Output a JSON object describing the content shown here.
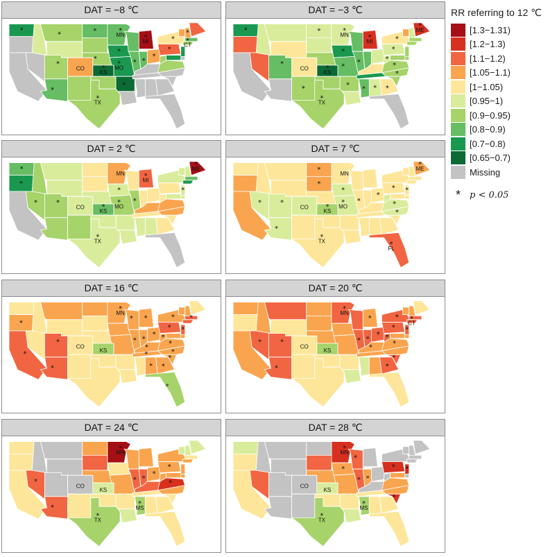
{
  "panels": [
    {
      "title": "DAT = −8 ℃",
      "fill": {
        "WA": 8,
        "OR": -1,
        "CA": -1,
        "NV": -1,
        "ID": 5,
        "MT": 6,
        "WY": 5,
        "UT": 6,
        "CO": 3,
        "AZ": 7,
        "NM": 6,
        "ND": 7,
        "SD": 6,
        "NE": 6,
        "KS": 9,
        "OK": 6,
        "TX": 6,
        "MN": 7,
        "IA": 8,
        "MO": 8,
        "AR": 9,
        "LA": -1,
        "WI": 7,
        "IL": 7,
        "IN": 7,
        "MI": 0,
        "OH": 3,
        "KY": -1,
        "TN": -1,
        "MS": -1,
        "AL": -1,
        "GA": -1,
        "FL": -1,
        "SC": -1,
        "NC": -1,
        "VA": 6,
        "WV": 6,
        "PA": 2,
        "NY": 4,
        "VT": 3,
        "NH": 3,
        "ME": 2,
        "MA": 7,
        "CT": 6,
        "NJ": 8,
        "DE": -1,
        "MD": 8
      },
      "stars": [
        "WA",
        "MT",
        "ND",
        "NE",
        "MN",
        "IA",
        "KS",
        "MO",
        "AR",
        "TX",
        "AZ",
        "UT",
        "IL",
        "IN",
        "MI",
        "NY",
        "NH",
        "CT",
        "OH",
        "PA"
      ],
      "labels": [
        "CO",
        "KS",
        "MO",
        "TX",
        "MN",
        "MI",
        "CT"
      ]
    },
    {
      "title": "DAT = −3 ℃",
      "fill": {
        "WA": 8,
        "OR": 2,
        "CA": -1,
        "NV": 2,
        "ID": 5,
        "MT": 5,
        "WY": 4,
        "UT": 7,
        "CO": 4,
        "AZ": -1,
        "NM": 6,
        "ND": 5,
        "SD": 5,
        "NE": 6,
        "KS": 9,
        "OK": 6,
        "TX": 6,
        "MN": 5,
        "IA": 8,
        "MO": 7,
        "AR": 6,
        "LA": 5,
        "WI": 7,
        "IL": 7,
        "IN": 7,
        "MI": 1,
        "OH": 5,
        "KY": 4,
        "TN": 8,
        "MS": 7,
        "AL": 5,
        "GA": 4,
        "FL": -1,
        "SC": 6,
        "NC": 6,
        "VA": 6,
        "WV": 5,
        "PA": 5,
        "NY": 4,
        "VT": 3,
        "NH": 5,
        "ME": 1,
        "MA": 6,
        "CT": 6,
        "NJ": 6,
        "DE": 6,
        "MD": 6
      },
      "stars": [
        "WA",
        "MN",
        "ND",
        "KS",
        "IA",
        "MO",
        "AR",
        "TX",
        "NM",
        "MS",
        "IL",
        "MI",
        "ME",
        "VA",
        "NC",
        "WV",
        "UT",
        "AL",
        "GA",
        "PA",
        "NY"
      ],
      "labels": [
        "CO",
        "KS",
        "TX",
        "MN",
        "MI",
        "ME"
      ]
    },
    {
      "title": "DAT = 2 ℃",
      "fill": {
        "WA": 7,
        "OR": 8,
        "CA": -1,
        "NV": 6,
        "ID": 6,
        "MT": 5,
        "WY": 5,
        "UT": 6,
        "CO": 5,
        "AZ": 6,
        "NM": 6,
        "ND": 4,
        "SD": 4,
        "NE": 5,
        "KS": 7,
        "OK": 5,
        "TX": 5,
        "MN": 3,
        "IA": 5,
        "MO": 6,
        "AR": 5,
        "LA": 5,
        "WI": 4,
        "IL": 6,
        "IN": 4,
        "MI": 2,
        "OH": 4,
        "KY": 3,
        "TN": 4,
        "MS": 5,
        "AL": 5,
        "GA": 4,
        "FL": -1,
        "SC": 4,
        "NC": 3,
        "VA": 3,
        "WV": 4,
        "PA": 4,
        "NY": 5,
        "VT": 5,
        "NH": 5,
        "ME": 0,
        "MA": 7,
        "CT": 8,
        "NJ": 5,
        "DE": 5,
        "MD": 5
      },
      "stars": [
        "WA",
        "OR",
        "NV",
        "UT",
        "KS",
        "MO",
        "IA",
        "IL",
        "TX",
        "ME",
        "NJ",
        "MI"
      ],
      "labels": [
        "CO",
        "KS",
        "MO",
        "TX",
        "MN",
        "MI",
        "ME"
      ]
    },
    {
      "title": "DAT = 7 ℃",
      "fill": {
        "WA": 4,
        "OR": 3,
        "CA": 3,
        "NV": 5,
        "ID": 4,
        "MT": 4,
        "WY": 4,
        "UT": 5,
        "CO": 5,
        "AZ": 5,
        "NM": 4,
        "ND": 3,
        "SD": 3,
        "NE": 4,
        "KS": 6,
        "OK": 4,
        "TX": 4,
        "MN": 4,
        "IA": 5,
        "MO": 5,
        "AR": 4,
        "LA": 4,
        "WI": 4,
        "IL": 4,
        "IN": 4,
        "MI": 4,
        "OH": 4,
        "KY": 4,
        "TN": 4,
        "MS": 4,
        "AL": 4,
        "GA": 4,
        "FL": 2,
        "SC": 4,
        "NC": 5,
        "VA": 5,
        "WV": 5,
        "PA": 4,
        "NY": 4,
        "VT": 4,
        "NH": 4,
        "ME": 3,
        "MA": 4,
        "CT": 4,
        "NJ": 4,
        "DE": 4,
        "MD": 4
      },
      "stars": [
        "ND",
        "SD",
        "NV",
        "UT",
        "AZ",
        "KS",
        "MO",
        "IA",
        "TX",
        "IL",
        "FL",
        "NC",
        "VA",
        "PA",
        "ME",
        "OH",
        "NJ"
      ],
      "labels": [
        "CO",
        "KS",
        "MO",
        "TX",
        "MN",
        "FL",
        "ME"
      ]
    },
    {
      "title": "DAT = 16 ℃",
      "fill": {
        "WA": 4,
        "OR": 3,
        "CA": 2,
        "NV": 4,
        "ID": 4,
        "MT": 3,
        "WY": 4,
        "UT": 2,
        "CO": 4,
        "AZ": 2,
        "NM": 4,
        "ND": 3,
        "SD": 4,
        "NE": 4,
        "KS": 6,
        "OK": 4,
        "TX": 4,
        "MN": 3,
        "IA": 3,
        "MO": 3,
        "AR": 4,
        "LA": 4,
        "WI": 3,
        "IL": 3,
        "IN": 3,
        "MI": 3,
        "OH": 3,
        "KY": 3,
        "TN": 3,
        "MS": 4,
        "AL": 3,
        "GA": 3,
        "FL": 6,
        "SC": 3,
        "NC": 3,
        "VA": 3,
        "WV": 3,
        "PA": 2,
        "NY": 3,
        "VT": 3,
        "NH": 3,
        "ME": 4,
        "MA": 2,
        "CT": 2,
        "NJ": 2,
        "DE": 3,
        "MD": 3
      },
      "stars": [
        "OR",
        "CA",
        "UT",
        "AZ",
        "MN",
        "WI",
        "MI",
        "IL",
        "IN",
        "OH",
        "KY",
        "TN",
        "AL",
        "GA",
        "SC",
        "NC",
        "VA",
        "PA",
        "NY",
        "MA",
        "NJ",
        "FL",
        "WV"
      ],
      "labels": [
        "CO",
        "KS",
        "MN"
      ]
    },
    {
      "title": "DAT = 20 ℃",
      "fill": {
        "WA": 3,
        "OR": 4,
        "CA": 3,
        "NV": 2,
        "ID": 3,
        "MT": 2,
        "WY": 4,
        "UT": 2,
        "CO": 4,
        "AZ": 2,
        "NM": 4,
        "ND": 3,
        "SD": 3,
        "NE": 3,
        "KS": 6,
        "OK": 4,
        "TX": 4,
        "MN": 2,
        "IA": 3,
        "MO": 3,
        "AR": 4,
        "LA": 5,
        "WI": 2,
        "IL": 2,
        "IN": 2,
        "MI": 3,
        "OH": 2,
        "KY": 3,
        "TN": 3,
        "MS": 5,
        "AL": 3,
        "GA": 2,
        "FL": 4,
        "SC": 2,
        "NC": 3,
        "VA": 3,
        "WV": 2,
        "PA": 2,
        "NY": 2,
        "VT": 3,
        "NH": 3,
        "ME": 4,
        "MA": 2,
        "CT": 2,
        "NJ": 2,
        "DE": 3,
        "MD": 3
      },
      "stars": [
        "MN",
        "NV",
        "UT",
        "AZ",
        "IL",
        "IN",
        "OH",
        "KY",
        "GA",
        "SC",
        "VA",
        "PA",
        "NY",
        "NJ",
        "CT",
        "WV",
        "MI"
      ],
      "labels": [
        "CO",
        "KS",
        "MN",
        "CT"
      ]
    },
    {
      "title": "DAT = 24 ℃",
      "fill": {
        "WA": 4,
        "OR": 4,
        "CA": 4,
        "NV": 2,
        "ID": -1,
        "MT": -1,
        "WY": -1,
        "UT": -1,
        "CO": -1,
        "AZ": 2,
        "NM": 4,
        "ND": 3,
        "SD": 2,
        "NE": 3,
        "KS": 5,
        "OK": 4,
        "TX": 6,
        "MN": 0,
        "IA": 4,
        "MO": 3,
        "AR": 4,
        "LA": 5,
        "WI": 3,
        "IL": 2,
        "IN": 2,
        "MI": 3,
        "OH": 3,
        "KY": 2,
        "TN": 4,
        "MS": 6,
        "AL": 4,
        "GA": 4,
        "FL": 4,
        "SC": 4,
        "NC": 3,
        "VA": 1,
        "WV": 3,
        "PA": 3,
        "NY": 3,
        "VT": 5,
        "NH": 5,
        "ME": 5,
        "MA": 4,
        "CT": 3,
        "NJ": 3,
        "DE": 3,
        "MD": 3
      },
      "stars": [
        "MN",
        "NV",
        "AZ",
        "IL",
        "IN",
        "VA",
        "TX",
        "MS",
        "PA",
        "OH"
      ],
      "labels": [
        "CO",
        "KS",
        "MN",
        "TX",
        "MS"
      ]
    },
    {
      "title": "DAT = 28 ℃",
      "fill": {
        "WA": 5,
        "OR": 4,
        "CA": 4,
        "NV": 2,
        "ID": -1,
        "MT": -1,
        "WY": -1,
        "UT": -1,
        "CO": -1,
        "AZ": -1,
        "NM": -1,
        "ND": -1,
        "SD": 2,
        "NE": 3,
        "KS": 5,
        "OK": 4,
        "TX": 6,
        "MN": 1,
        "IA": 3,
        "MO": 3,
        "AR": 4,
        "LA": 5,
        "WI": 2,
        "IL": 2,
        "IN": 3,
        "MI": -1,
        "OH": -1,
        "KY": -1,
        "TN": 4,
        "MS": 6,
        "AL": 4,
        "GA": 4,
        "FL": 4,
        "SC": 1,
        "NC": 3,
        "VA": 3,
        "WV": -1,
        "PA": 1,
        "NY": -1,
        "VT": -1,
        "NH": -1,
        "ME": -1,
        "MA": -1,
        "CT": -1,
        "NJ": 1,
        "DE": -1,
        "MD": 3
      },
      "stars": [
        "MN",
        "WI",
        "IA",
        "IL",
        "TX",
        "MS",
        "SC",
        "PA",
        "NJ",
        "IN"
      ],
      "labels": [
        "CO",
        "KS",
        "MN",
        "TX",
        "MS"
      ]
    }
  ],
  "legend": {
    "title": "RR referring to 12 ℃",
    "items": [
      {
        "label": "[1.3−1.31)",
        "color": "#a50f15"
      },
      {
        "label": "[1.2−1.3)",
        "color": "#d7301f"
      },
      {
        "label": "[1.1−1.2)",
        "color": "#f16542"
      },
      {
        "label": "[1.05−1.1)",
        "color": "#f9a54f"
      },
      {
        "label": "[1−1.05)",
        "color": "#fde699"
      },
      {
        "label": "[0.95−1)",
        "color": "#d9ec9b"
      },
      {
        "label": "[0.9−0.95)",
        "color": "#a6d36a"
      },
      {
        "label": "[0.8−0.9)",
        "color": "#66bd63"
      },
      {
        "label": "[0.7−0.8)",
        "color": "#1a9850"
      },
      {
        "label": "[0.65−0.7)",
        "color": "#0c6a35"
      },
      {
        "label": "Missing",
        "color": "#c3c3c3"
      }
    ],
    "significance_star": "*",
    "significance_text": "p < 0.05"
  }
}
